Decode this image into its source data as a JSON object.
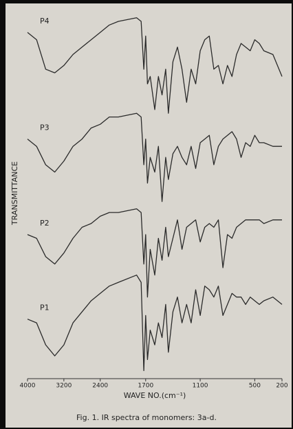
{
  "chart_data": {
    "type": "line",
    "y_label": "TRANSMITTANCE",
    "x_label": "WAVE NO.(cm⁻¹)",
    "caption": "Fig. 1. IR spectra of monomers: 3a-d.",
    "color": "#2a2a2a",
    "xlim": [
      4000,
      200
    ],
    "xticks": [
      4000,
      3200,
      2400,
      1700,
      1100,
      500,
      200
    ],
    "ylim": [
      0,
      100
    ],
    "x": [
      4000,
      3800,
      3600,
      3400,
      3200,
      3000,
      2800,
      2600,
      2400,
      2200,
      2000,
      1800,
      1750,
      1720,
      1700,
      1680,
      1650,
      1600,
      1560,
      1520,
      1480,
      1450,
      1400,
      1350,
      1300,
      1250,
      1200,
      1150,
      1100,
      1050,
      1000,
      950,
      900,
      850,
      800,
      750,
      700,
      650,
      600,
      550,
      500,
      450,
      400,
      300,
      200
    ],
    "series": [
      {
        "name": "P4",
        "values": [
          94,
          92,
          84,
          83,
          85,
          88,
          90,
          92,
          94,
          96,
          97,
          98,
          97,
          84,
          93,
          80,
          82,
          73,
          82,
          77,
          84,
          72,
          86,
          90,
          84,
          75,
          84,
          80,
          89,
          92,
          93,
          84,
          85,
          80,
          85,
          82,
          88,
          91,
          90,
          89,
          92,
          91,
          89,
          88,
          82
        ]
      },
      {
        "name": "P3",
        "values": [
          65,
          63,
          58,
          56,
          59,
          63,
          65,
          68,
          69,
          71,
          71,
          72,
          71,
          58,
          65,
          53,
          60,
          56,
          63,
          48,
          60,
          54,
          61,
          63,
          60,
          58,
          63,
          57,
          64,
          65,
          66,
          58,
          63,
          65,
          66,
          67,
          65,
          60,
          64,
          63,
          66,
          64,
          64,
          63,
          63
        ]
      },
      {
        "name": "P2",
        "values": [
          39,
          38,
          33,
          31,
          34,
          38,
          41,
          42,
          44,
          45,
          45,
          46,
          45,
          31,
          39,
          22,
          35,
          28,
          38,
          32,
          41,
          33,
          38,
          43,
          35,
          41,
          42,
          43,
          37,
          41,
          42,
          41,
          43,
          30,
          39,
          38,
          41,
          42,
          43,
          43,
          43,
          43,
          42,
          43,
          43
        ]
      },
      {
        "name": "P1",
        "values": [
          16,
          15,
          9,
          6,
          9,
          15,
          18,
          21,
          23,
          25,
          26,
          28,
          26,
          2,
          17,
          5,
          13,
          9,
          15,
          11,
          20,
          7,
          18,
          22,
          15,
          20,
          15,
          24,
          17,
          25,
          24,
          22,
          25,
          17,
          20,
          23,
          22,
          22,
          20,
          22,
          21,
          20,
          21,
          22,
          20
        ]
      }
    ]
  }
}
